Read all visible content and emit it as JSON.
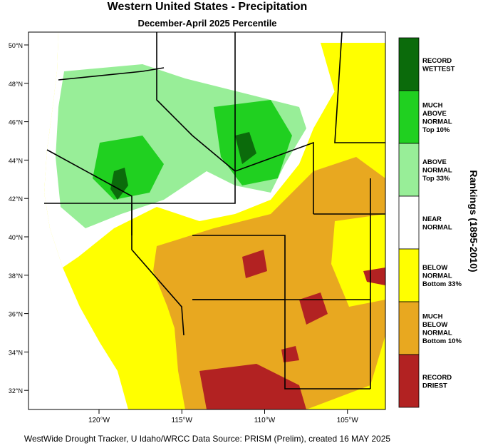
{
  "header": {
    "title": "Western United States - Precipitation",
    "subtitle": "December-April 2025 Percentile"
  },
  "map": {
    "lat_ticks": [
      {
        "value": 50,
        "label": "50°N"
      },
      {
        "value": 48,
        "label": "48°N"
      },
      {
        "value": 46,
        "label": "46°N"
      },
      {
        "value": 44,
        "label": "44°N"
      },
      {
        "value": 42,
        "label": "42°N"
      },
      {
        "value": 40,
        "label": "40°N"
      },
      {
        "value": 38,
        "label": "38°N"
      },
      {
        "value": 36,
        "label": "36°N"
      },
      {
        "value": 34,
        "label": "34°N"
      },
      {
        "value": 32,
        "label": "32°N"
      }
    ],
    "lon_ticks": [
      {
        "value": 120,
        "label": "120°W"
      },
      {
        "value": 115,
        "label": "115°W"
      },
      {
        "value": 110,
        "label": "110°W"
      },
      {
        "value": 105,
        "label": "105°W"
      }
    ]
  },
  "legend": {
    "title": "Rankings (1895-2010)",
    "items": [
      {
        "lines": [
          "RECORD",
          "WETTEST"
        ],
        "color": "#0b6b0b"
      },
      {
        "lines": [
          "MUCH",
          "ABOVE",
          "NORMAL",
          "Top 10%"
        ],
        "color": "#20d020"
      },
      {
        "lines": [
          "ABOVE",
          "NORMAL",
          "Top 33%"
        ],
        "color": "#98ee98"
      },
      {
        "lines": [
          "NEAR",
          "NORMAL"
        ],
        "color": "#ffffff"
      },
      {
        "lines": [
          "BELOW",
          "NORMAL",
          "Bottom 33%"
        ],
        "color": "#ffff00"
      },
      {
        "lines": [
          "MUCH",
          "BELOW",
          "NORMAL",
          "Bottom 10%"
        ],
        "color": "#e8a820"
      },
      {
        "lines": [
          "RECORD",
          "DRIEST"
        ],
        "color": "#b22222"
      }
    ]
  },
  "footer": "WestWide Drought Tracker, U Idaho/WRCC Data Source: PRISM (Prelim), created 16 MAY 2025"
}
